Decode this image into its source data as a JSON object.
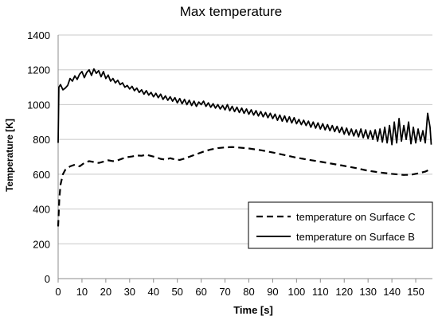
{
  "chart_data": {
    "type": "line",
    "title": "Max temperature",
    "xlabel": "Time [s]",
    "ylabel": "Temperature  [K]",
    "xlim": [
      0,
      157
    ],
    "ylim": [
      0,
      1400
    ],
    "x_ticks": [
      0,
      10,
      20,
      30,
      40,
      50,
      60,
      70,
      80,
      90,
      100,
      110,
      120,
      130,
      140,
      150
    ],
    "y_ticks": [
      0,
      200,
      400,
      600,
      800,
      1000,
      1200,
      1400
    ],
    "grid": "horizontal",
    "legend_position": "bottom-right",
    "series": [
      {
        "name": "temperature on Surface C",
        "style": "dashed",
        "color": "#000000",
        "points": [
          [
            0,
            300
          ],
          [
            0.5,
            460
          ],
          [
            1,
            540
          ],
          [
            2,
            600
          ],
          [
            3,
            625
          ],
          [
            5,
            645
          ],
          [
            7,
            655
          ],
          [
            9,
            645
          ],
          [
            11,
            665
          ],
          [
            13,
            675
          ],
          [
            15,
            670
          ],
          [
            17,
            665
          ],
          [
            19,
            672
          ],
          [
            21,
            680
          ],
          [
            23,
            675
          ],
          [
            25,
            680
          ],
          [
            27,
            690
          ],
          [
            29,
            698
          ],
          [
            31,
            702
          ],
          [
            33,
            708
          ],
          [
            35,
            706
          ],
          [
            37,
            712
          ],
          [
            39,
            705
          ],
          [
            41,
            698
          ],
          [
            43,
            688
          ],
          [
            45,
            684
          ],
          [
            47,
            692
          ],
          [
            49,
            685
          ],
          [
            51,
            682
          ],
          [
            53,
            690
          ],
          [
            55,
            700
          ],
          [
            58,
            715
          ],
          [
            61,
            730
          ],
          [
            64,
            742
          ],
          [
            67,
            750
          ],
          [
            70,
            754
          ],
          [
            73,
            756
          ],
          [
            76,
            753
          ],
          [
            80,
            748
          ],
          [
            85,
            738
          ],
          [
            90,
            725
          ],
          [
            95,
            710
          ],
          [
            100,
            695
          ],
          [
            105,
            683
          ],
          [
            110,
            672
          ],
          [
            115,
            660
          ],
          [
            120,
            648
          ],
          [
            125,
            635
          ],
          [
            130,
            620
          ],
          [
            135,
            610
          ],
          [
            140,
            602
          ],
          [
            145,
            596
          ],
          [
            148,
            597
          ],
          [
            151,
            605
          ],
          [
            154,
            615
          ],
          [
            156,
            628
          ]
        ]
      },
      {
        "name": "temperature on Surface B",
        "style": "solid",
        "color": "#000000",
        "points": [
          [
            0,
            780
          ],
          [
            0.3,
            1100
          ],
          [
            1,
            1115
          ],
          [
            2,
            1085
          ],
          [
            3,
            1095
          ],
          [
            4,
            1110
          ],
          [
            5,
            1150
          ],
          [
            6,
            1135
          ],
          [
            7,
            1165
          ],
          [
            8,
            1145
          ],
          [
            9,
            1175
          ],
          [
            10,
            1190
          ],
          [
            11,
            1155
          ],
          [
            12,
            1185
          ],
          [
            13,
            1200
          ],
          [
            14,
            1168
          ],
          [
            15,
            1205
          ],
          [
            16,
            1180
          ],
          [
            17,
            1195
          ],
          [
            18,
            1160
          ],
          [
            19,
            1190
          ],
          [
            20,
            1150
          ],
          [
            21,
            1170
          ],
          [
            22,
            1135
          ],
          [
            23,
            1150
          ],
          [
            24,
            1125
          ],
          [
            25,
            1140
          ],
          [
            26,
            1115
          ],
          [
            27,
            1125
          ],
          [
            28,
            1100
          ],
          [
            29,
            1110
          ],
          [
            30,
            1090
          ],
          [
            31,
            1105
          ],
          [
            32,
            1080
          ],
          [
            33,
            1095
          ],
          [
            34,
            1070
          ],
          [
            35,
            1085
          ],
          [
            36,
            1060
          ],
          [
            37,
            1080
          ],
          [
            38,
            1055
          ],
          [
            39,
            1070
          ],
          [
            40,
            1045
          ],
          [
            41,
            1065
          ],
          [
            42,
            1040
          ],
          [
            43,
            1060
          ],
          [
            44,
            1030
          ],
          [
            45,
            1050
          ],
          [
            46,
            1025
          ],
          [
            47,
            1045
          ],
          [
            48,
            1020
          ],
          [
            49,
            1040
          ],
          [
            50,
            1010
          ],
          [
            51,
            1035
          ],
          [
            52,
            1005
          ],
          [
            53,
            1030
          ],
          [
            54,
            1000
          ],
          [
            55,
            1025
          ],
          [
            56,
            995
          ],
          [
            57,
            1020
          ],
          [
            58,
            990
          ],
          [
            59,
            1015
          ],
          [
            60,
            1000
          ],
          [
            61,
            1020
          ],
          [
            62,
            990
          ],
          [
            63,
            1010
          ],
          [
            64,
            985
          ],
          [
            65,
            1005
          ],
          [
            66,
            980
          ],
          [
            67,
            1000
          ],
          [
            68,
            975
          ],
          [
            69,
            995
          ],
          [
            70,
            970
          ],
          [
            71,
            1000
          ],
          [
            72,
            965
          ],
          [
            73,
            990
          ],
          [
            74,
            960
          ],
          [
            75,
            985
          ],
          [
            76,
            955
          ],
          [
            77,
            980
          ],
          [
            78,
            950
          ],
          [
            79,
            975
          ],
          [
            80,
            945
          ],
          [
            81,
            970
          ],
          [
            82,
            940
          ],
          [
            83,
            965
          ],
          [
            84,
            935
          ],
          [
            85,
            960
          ],
          [
            86,
            930
          ],
          [
            87,
            955
          ],
          [
            88,
            925
          ],
          [
            89,
            950
          ],
          [
            90,
            920
          ],
          [
            91,
            945
          ],
          [
            92,
            910
          ],
          [
            93,
            940
          ],
          [
            94,
            905
          ],
          [
            95,
            935
          ],
          [
            96,
            900
          ],
          [
            97,
            930
          ],
          [
            98,
            895
          ],
          [
            99,
            925
          ],
          [
            100,
            890
          ],
          [
            101,
            915
          ],
          [
            102,
            885
          ],
          [
            103,
            910
          ],
          [
            104,
            880
          ],
          [
            105,
            905
          ],
          [
            106,
            870
          ],
          [
            107,
            900
          ],
          [
            108,
            865
          ],
          [
            109,
            895
          ],
          [
            110,
            860
          ],
          [
            111,
            890
          ],
          [
            112,
            855
          ],
          [
            113,
            885
          ],
          [
            114,
            850
          ],
          [
            115,
            880
          ],
          [
            116,
            845
          ],
          [
            117,
            875
          ],
          [
            118,
            840
          ],
          [
            119,
            870
          ],
          [
            120,
            830
          ],
          [
            121,
            865
          ],
          [
            122,
            825
          ],
          [
            123,
            860
          ],
          [
            124,
            820
          ],
          [
            125,
            855
          ],
          [
            126,
            815
          ],
          [
            127,
            860
          ],
          [
            128,
            810
          ],
          [
            129,
            855
          ],
          [
            130,
            805
          ],
          [
            131,
            850
          ],
          [
            132,
            800
          ],
          [
            133,
            855
          ],
          [
            134,
            790
          ],
          [
            135,
            860
          ],
          [
            136,
            785
          ],
          [
            137,
            870
          ],
          [
            138,
            780
          ],
          [
            139,
            880
          ],
          [
            140,
            770
          ],
          [
            141,
            900
          ],
          [
            142,
            780
          ],
          [
            143,
            920
          ],
          [
            144,
            790
          ],
          [
            145,
            880
          ],
          [
            146,
            800
          ],
          [
            147,
            900
          ],
          [
            148,
            775
          ],
          [
            149,
            870
          ],
          [
            150,
            780
          ],
          [
            151,
            860
          ],
          [
            152,
            790
          ],
          [
            153,
            850
          ],
          [
            154,
            780
          ],
          [
            155,
            950
          ],
          [
            156,
            870
          ],
          [
            156.5,
            770
          ]
        ]
      }
    ]
  }
}
